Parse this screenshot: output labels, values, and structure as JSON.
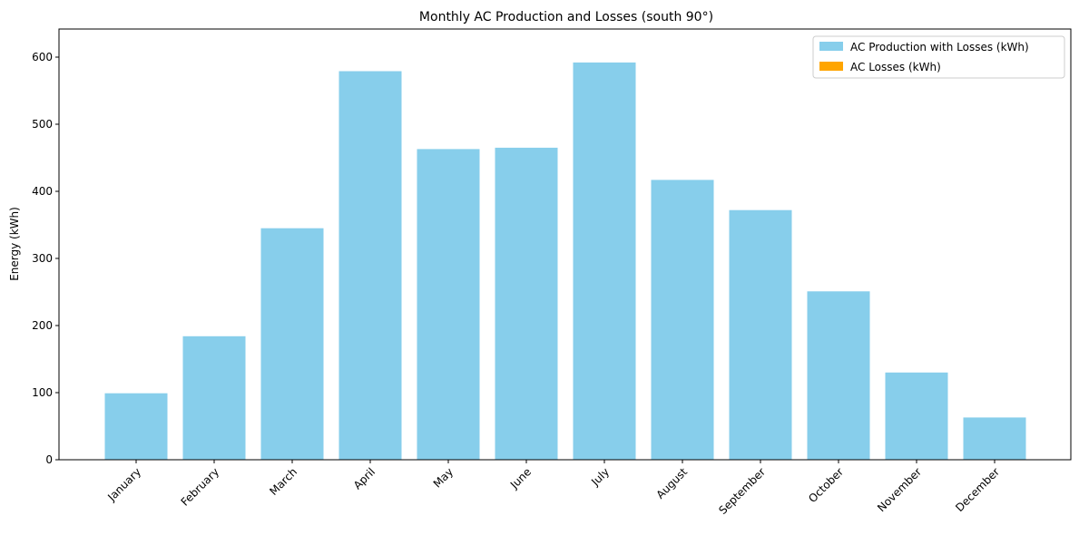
{
  "chart_data": {
    "type": "bar",
    "title": "Monthly AC Production and Losses (south 90°)",
    "xlabel": "",
    "ylabel": "Energy (kWh)",
    "ylim": [
      0,
      640
    ],
    "yticks": [
      0,
      100,
      200,
      300,
      400,
      500,
      600
    ],
    "categories": [
      "January",
      "February",
      "March",
      "April",
      "May",
      "June",
      "July",
      "August",
      "September",
      "October",
      "November",
      "December"
    ],
    "series": [
      {
        "name": "AC Production with Losses (kWh)",
        "color": "#87ceeb",
        "values": [
          99,
          184,
          345,
          579,
          463,
          465,
          592,
          417,
          372,
          251,
          130,
          63
        ]
      },
      {
        "name": "AC Losses (kWh)",
        "color": "#ffa500",
        "values": [
          0,
          0,
          0,
          0,
          0,
          0,
          0,
          0,
          0,
          0,
          0,
          0
        ]
      }
    ],
    "grid": false,
    "legend_position": "top-right"
  }
}
